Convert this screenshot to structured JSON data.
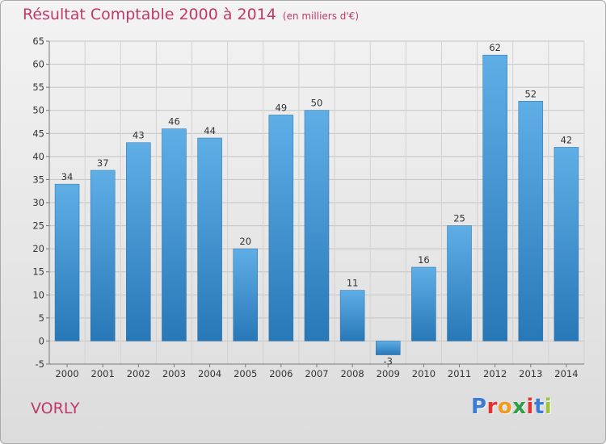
{
  "header": {
    "title": "Résultat Comptable 2000 à 2014",
    "subtitle": "(en milliers d'€)"
  },
  "location": "VORLY",
  "logo": {
    "text": "Proxiti",
    "colors": [
      "#3a7bd5",
      "#e3312d",
      "#f29a1f",
      "#2f9e44",
      "#e3312d",
      "#3a7bd5",
      "#9bc53d"
    ]
  },
  "colors": {
    "title": "#c0396b",
    "bar_light": "#5faee6",
    "bar_dark": "#2878b8"
  },
  "chart_data": {
    "type": "bar",
    "categories": [
      "2000",
      "2001",
      "2002",
      "2003",
      "2004",
      "2005",
      "2006",
      "2007",
      "2008",
      "2009",
      "2010",
      "2011",
      "2012",
      "2013",
      "2014"
    ],
    "values": [
      34,
      37,
      43,
      46,
      44,
      20,
      49,
      50,
      11,
      -3,
      16,
      25,
      62,
      52,
      42
    ],
    "title": "Résultat Comptable 2000 à 2014",
    "xlabel": "",
    "ylabel": "",
    "ylim": [
      -5,
      65
    ],
    "yticks": [
      -5,
      0,
      5,
      10,
      15,
      20,
      25,
      30,
      35,
      40,
      45,
      50,
      55,
      60,
      65
    ],
    "grid": true,
    "legend": "none"
  }
}
